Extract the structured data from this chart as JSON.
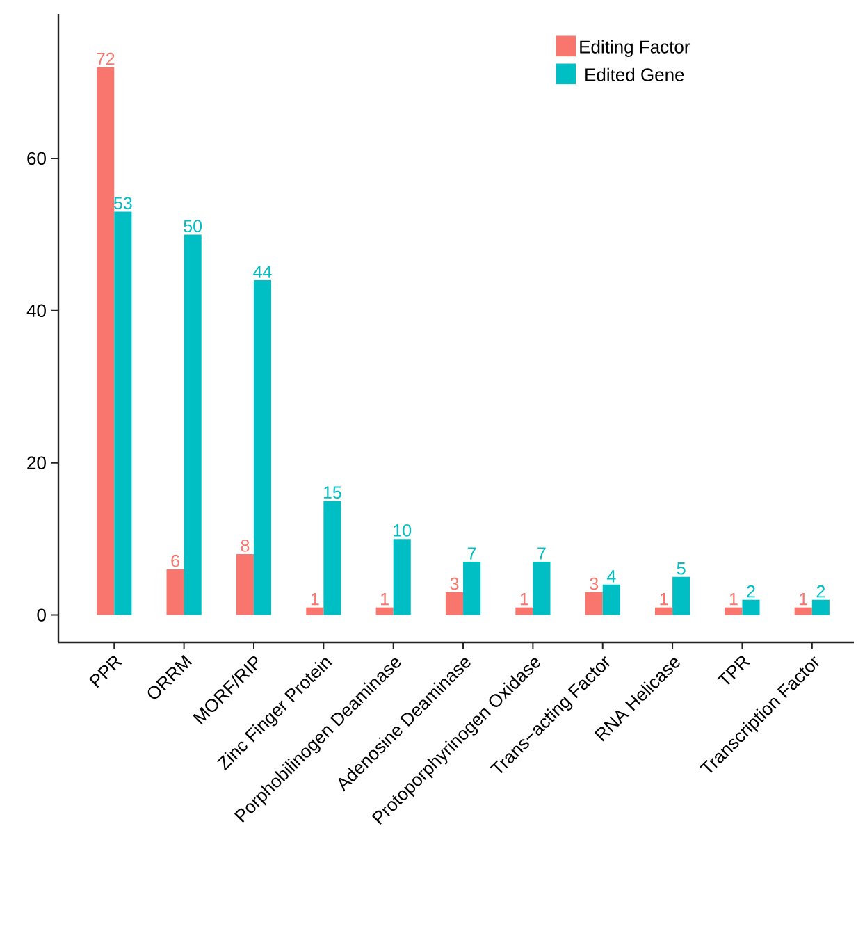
{
  "chart_data": {
    "type": "bar",
    "categories": [
      "PPR",
      "ORRM",
      "MORF/RIP",
      "Zinc Finger Protein",
      "Porphobilinogen Deaminase",
      "Adenosine Deaminase",
      "Protoporphyrinogen Oxidase",
      "Trans−acting Factor",
      "RNA Helicase",
      "TPR",
      "Transcription Factor"
    ],
    "series": [
      {
        "name": "Editing Factor",
        "color": "#f8766d",
        "values": [
          72,
          6,
          8,
          1,
          1,
          3,
          1,
          3,
          1,
          1,
          1
        ]
      },
      {
        "name": "Edited Gene",
        "color": "#00bfc4",
        "values": [
          53,
          50,
          44,
          15,
          10,
          7,
          7,
          4,
          5,
          2,
          2
        ]
      }
    ],
    "ylim": [
      -3.6,
      79
    ],
    "yticks": [
      0,
      20,
      40,
      60
    ],
    "data_labels": true,
    "legend": "top right",
    "grid": false
  }
}
